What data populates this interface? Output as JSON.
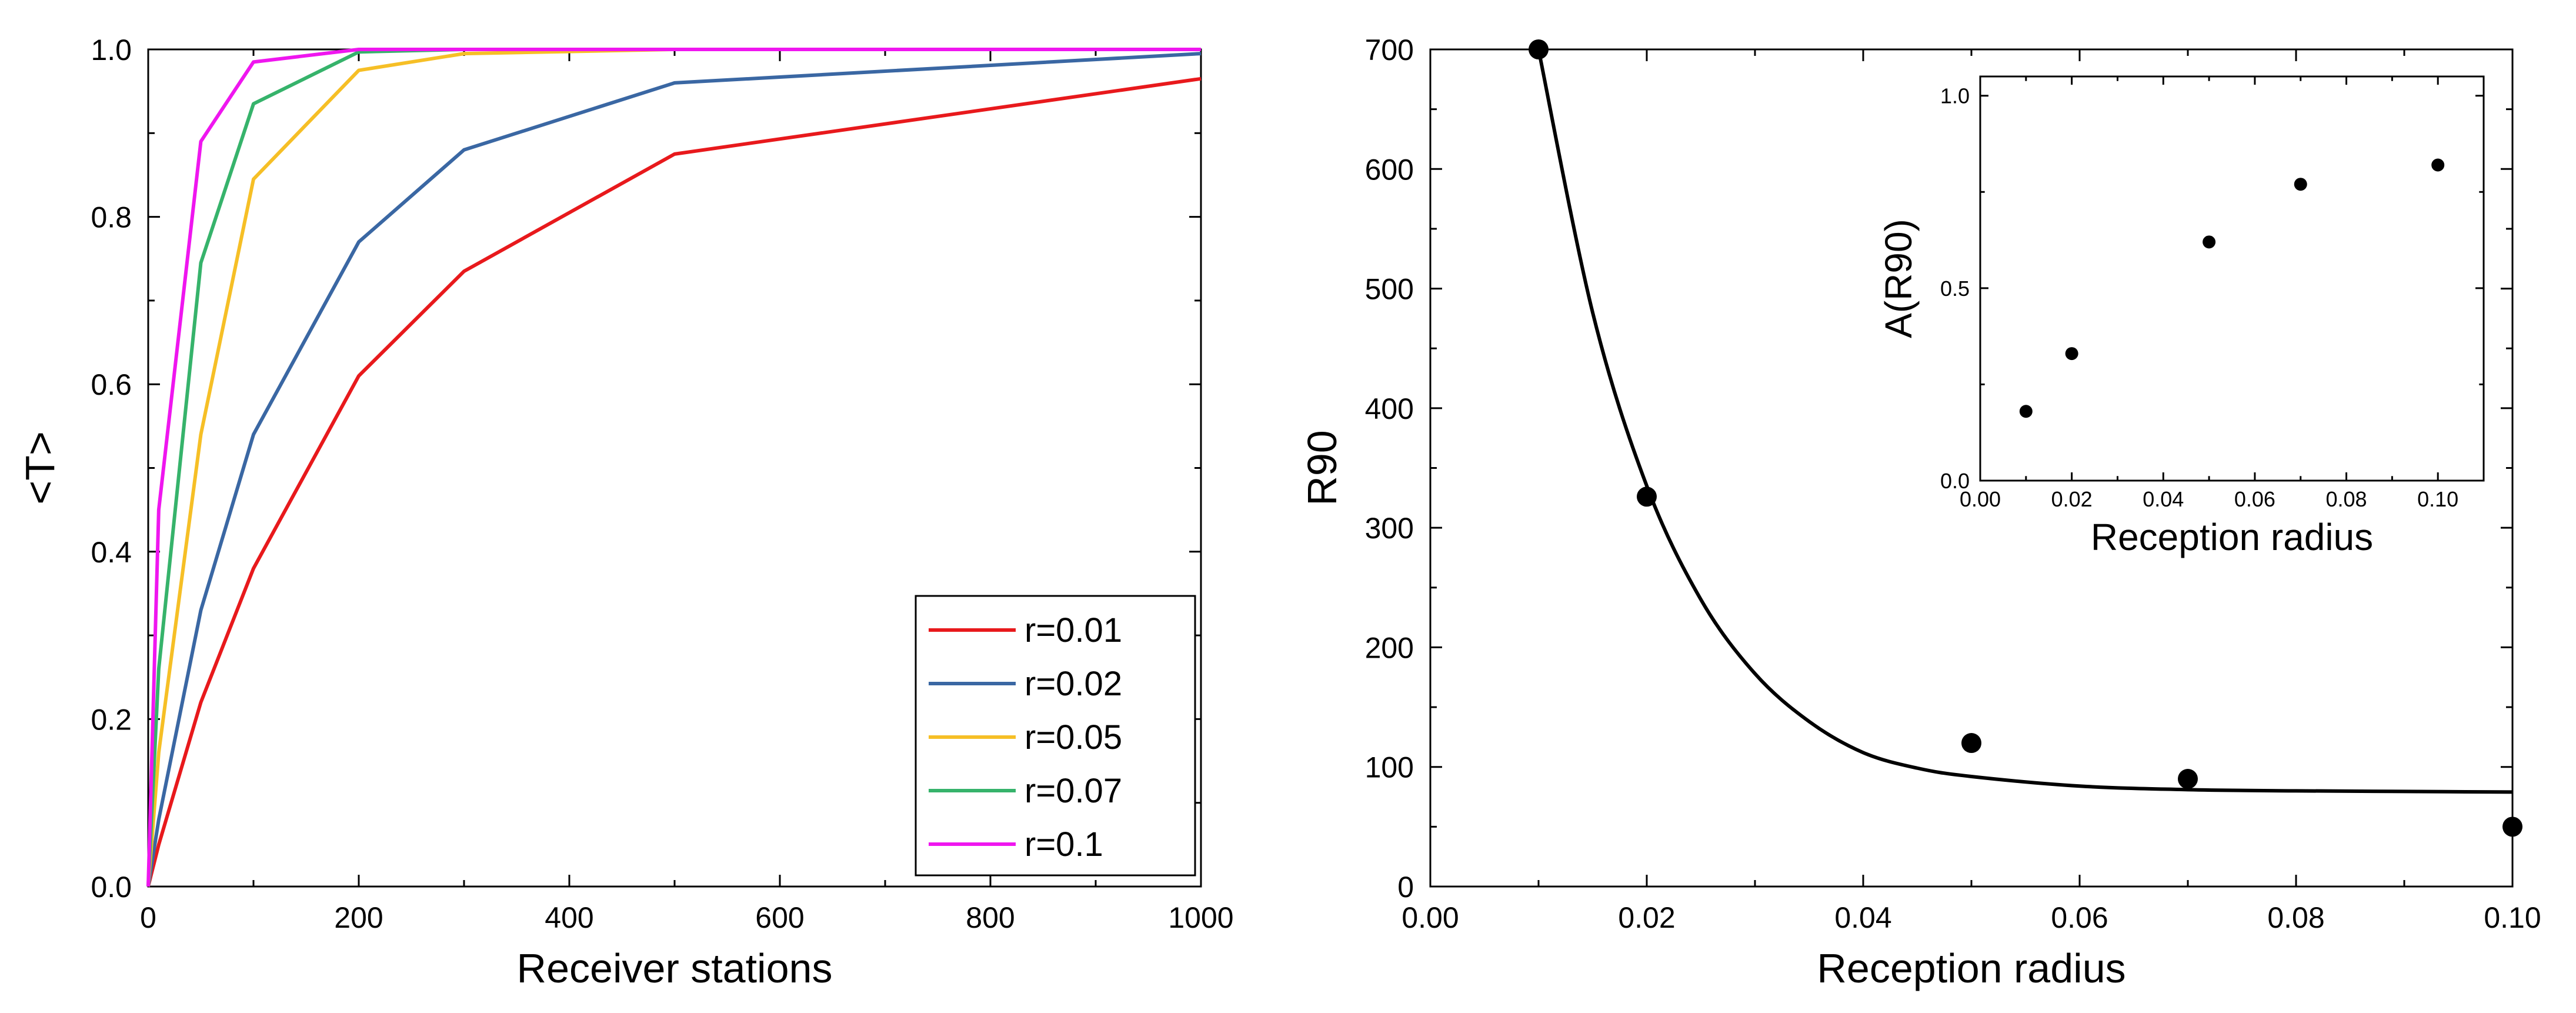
{
  "chart_data": [
    {
      "type": "line",
      "title": "",
      "xlabel": "Receiver stations",
      "ylabel": "<T>",
      "xlim": [
        0,
        1000
      ],
      "ylim": [
        0,
        1.0
      ],
      "xticks": [
        0,
        200,
        400,
        600,
        800,
        1000
      ],
      "xtick_labels": [
        "0",
        "200",
        "400",
        "600",
        "800",
        "1000"
      ],
      "yticks": [
        0.0,
        0.2,
        0.4,
        0.6,
        0.8,
        1.0
      ],
      "ytick_labels": [
        "0.0",
        "0.2",
        "0.4",
        "0.6",
        "0.8",
        "1.0"
      ],
      "legend_position": "bottom-right",
      "x": [
        0,
        10,
        50,
        100,
        200,
        300,
        500,
        1000
      ],
      "series": [
        {
          "name": "r=0.01",
          "color": "#e8191c",
          "values": [
            0.0,
            0.05,
            0.22,
            0.38,
            0.61,
            0.735,
            0.875,
            0.965
          ]
        },
        {
          "name": "r=0.02",
          "color": "#3a67a3",
          "values": [
            0.0,
            0.08,
            0.33,
            0.54,
            0.77,
            0.88,
            0.96,
            0.995
          ]
        },
        {
          "name": "r=0.05",
          "color": "#f6bf26",
          "values": [
            0.0,
            0.16,
            0.54,
            0.845,
            0.975,
            0.995,
            1.0,
            1.0
          ]
        },
        {
          "name": "r=0.07",
          "color": "#36b36b",
          "values": [
            0.0,
            0.26,
            0.745,
            0.935,
            0.997,
            1.0,
            1.0,
            1.0
          ]
        },
        {
          "name": "r=0.1",
          "color": "#ef16ef",
          "values": [
            0.0,
            0.45,
            0.89,
            0.985,
            1.0,
            1.0,
            1.0,
            1.0
          ]
        }
      ]
    },
    {
      "type": "scatter",
      "title": "",
      "xlabel": "Reception radius",
      "ylabel": "R90",
      "xlim": [
        0.0,
        0.1
      ],
      "ylim": [
        0,
        700
      ],
      "xticks": [
        0.0,
        0.02,
        0.04,
        0.06,
        0.08,
        0.1
      ],
      "xtick_labels": [
        "0.00",
        "0.02",
        "0.04",
        "0.06",
        "0.08",
        "0.10"
      ],
      "yticks": [
        0,
        100,
        200,
        300,
        400,
        500,
        600,
        700
      ],
      "ytick_labels": [
        "0",
        "100",
        "200",
        "300",
        "400",
        "500",
        "600",
        "700"
      ],
      "points": {
        "x": [
          0.01,
          0.02,
          0.05,
          0.07,
          0.1
        ],
        "y": [
          700,
          326,
          120,
          90,
          50
        ]
      },
      "fit_curve": {
        "x": [
          0.01,
          0.015,
          0.02,
          0.025,
          0.03,
          0.035,
          0.04,
          0.045,
          0.05,
          0.06,
          0.07,
          0.08,
          0.09,
          0.1
        ],
        "y": [
          700,
          480,
          335,
          240,
          178,
          138,
          112,
          99,
          92,
          84,
          81,
          80,
          79.5,
          79
        ]
      },
      "inset": {
        "type": "scatter",
        "xlabel": "Reception radius",
        "ylabel": "A(R90)",
        "xlim": [
          0.0,
          0.11
        ],
        "ylim": [
          0.0,
          1.05
        ],
        "xticks": [
          0.0,
          0.02,
          0.04,
          0.06,
          0.08,
          0.1
        ],
        "xtick_labels": [
          "0.00",
          "0.02",
          "0.04",
          "0.06",
          "0.08",
          "0.10"
        ],
        "yticks": [
          0.0,
          0.5,
          1.0
        ],
        "ytick_labels": [
          "0.0",
          "0.5",
          "1.0"
        ],
        "x": [
          0.01,
          0.02,
          0.05,
          0.07,
          0.1
        ],
        "y": [
          0.18,
          0.33,
          0.62,
          0.77,
          0.82
        ]
      }
    }
  ]
}
